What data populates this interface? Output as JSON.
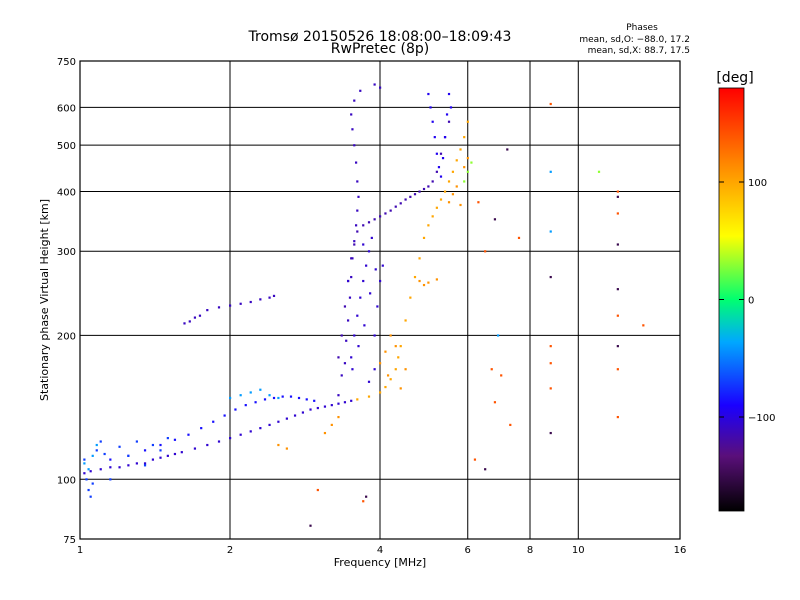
{
  "chart_data": {
    "type": "scatter",
    "title": "Tromsø 20150526 18:08:00–18:09:43",
    "subtitle": "RwPretec (8p)",
    "phases": {
      "heading": "Phases",
      "line1": "mean, sd,O: −88.0, 17.2",
      "line2": "mean, sd,X:  88.7, 17.5"
    },
    "xlabel": "Frequency [MHz]",
    "ylabel": "Stationary phase Virtual Height [km]",
    "x_scale": "log",
    "y_scale": "log",
    "xlim": [
      1,
      16
    ],
    "ylim": [
      75,
      750
    ],
    "grid": true,
    "x_ticks": [
      {
        "value": 1,
        "label": "1"
      },
      {
        "value": 2,
        "label": "2"
      },
      {
        "value": 4,
        "label": "4"
      },
      {
        "value": 6,
        "label": "6"
      },
      {
        "value": 8,
        "label": "8"
      },
      {
        "value": 10,
        "label": "10"
      },
      {
        "value": 16,
        "label": "16"
      }
    ],
    "y_ticks": [
      {
        "value": 75,
        "label": "75"
      },
      {
        "value": 100,
        "label": "100"
      },
      {
        "value": 200,
        "label": "200"
      },
      {
        "value": 300,
        "label": "300"
      },
      {
        "value": 400,
        "label": "400"
      },
      {
        "value": 500,
        "label": "500"
      },
      {
        "value": 600,
        "label": "600"
      },
      {
        "value": 750,
        "label": "750"
      }
    ],
    "colorbar": {
      "label": "[deg]",
      "min": -180,
      "max": 180,
      "ticks": [
        {
          "value": 100,
          "label": "100"
        },
        {
          "value": 0,
          "label": "0"
        },
        {
          "value": -100,
          "label": "−100"
        }
      ]
    },
    "series": [
      {
        "trace": "lower-layer-trace",
        "phase": -105,
        "points": [
          [
            1.02,
            103
          ],
          [
            1.05,
            104
          ],
          [
            1.1,
            105
          ],
          [
            1.15,
            106
          ],
          [
            1.2,
            106
          ],
          [
            1.25,
            107
          ],
          [
            1.3,
            108
          ],
          [
            1.35,
            108
          ],
          [
            1.4,
            110
          ],
          [
            1.45,
            111
          ],
          [
            1.5,
            112
          ],
          [
            1.55,
            113
          ],
          [
            1.6,
            114
          ],
          [
            1.7,
            116
          ],
          [
            1.8,
            118
          ],
          [
            1.9,
            120
          ],
          [
            2.0,
            122
          ],
          [
            2.1,
            124
          ],
          [
            2.2,
            126
          ],
          [
            2.3,
            128
          ],
          [
            2.4,
            130
          ],
          [
            2.5,
            132
          ],
          [
            2.6,
            134
          ],
          [
            2.7,
            136
          ],
          [
            2.8,
            138
          ],
          [
            2.9,
            140
          ],
          [
            3.0,
            141
          ],
          [
            3.1,
            142
          ],
          [
            3.2,
            143
          ],
          [
            3.3,
            144
          ],
          [
            3.4,
            145
          ],
          [
            3.5,
            146
          ]
        ]
      },
      {
        "trace": "upper-band-trace",
        "phase": -85,
        "points": [
          [
            1.15,
            110
          ],
          [
            1.25,
            112
          ],
          [
            1.35,
            115
          ],
          [
            1.45,
            118
          ],
          [
            1.55,
            121
          ],
          [
            1.65,
            124
          ],
          [
            1.75,
            128
          ],
          [
            1.85,
            132
          ],
          [
            1.95,
            136
          ],
          [
            2.05,
            140
          ],
          [
            2.15,
            143
          ],
          [
            2.25,
            145
          ],
          [
            2.35,
            147
          ],
          [
            2.45,
            148
          ],
          [
            2.55,
            149
          ],
          [
            2.65,
            149
          ],
          [
            2.75,
            148
          ],
          [
            2.85,
            147
          ],
          [
            2.95,
            146
          ]
        ]
      },
      {
        "trace": "low-frequency-spread",
        "phase": -70,
        "points": [
          [
            1.02,
            110
          ],
          [
            1.03,
            100
          ],
          [
            1.04,
            95
          ],
          [
            1.05,
            92
          ],
          [
            1.06,
            98
          ],
          [
            1.08,
            115
          ],
          [
            1.1,
            120
          ],
          [
            1.12,
            113
          ],
          [
            1.15,
            100
          ],
          [
            1.2,
            117
          ],
          [
            1.25,
            112
          ],
          [
            1.3,
            120
          ],
          [
            1.35,
            107
          ],
          [
            1.4,
            118
          ],
          [
            1.45,
            115
          ],
          [
            1.5,
            122
          ]
        ]
      },
      {
        "trace": "sporadic-layer",
        "phase": -110,
        "points": [
          [
            1.62,
            212
          ],
          [
            1.66,
            214
          ],
          [
            1.7,
            218
          ],
          [
            1.74,
            220
          ],
          [
            1.8,
            226
          ],
          [
            1.9,
            229
          ],
          [
            2.0,
            231
          ],
          [
            2.1,
            233
          ],
          [
            2.2,
            235
          ],
          [
            2.3,
            238
          ],
          [
            2.4,
            240
          ],
          [
            2.45,
            242
          ]
        ]
      },
      {
        "trace": "ordinary-f-trace",
        "phase": -115,
        "points": [
          [
            3.3,
            180
          ],
          [
            3.35,
            200
          ],
          [
            3.4,
            230
          ],
          [
            3.45,
            260
          ],
          [
            3.5,
            290
          ],
          [
            3.55,
            310
          ],
          [
            3.6,
            330
          ],
          [
            3.7,
            340
          ],
          [
            3.8,
            345
          ],
          [
            3.9,
            350
          ],
          [
            4.0,
            355
          ],
          [
            4.1,
            360
          ],
          [
            4.2,
            365
          ],
          [
            4.3,
            372
          ],
          [
            4.4,
            378
          ],
          [
            4.5,
            385
          ],
          [
            4.6,
            390
          ],
          [
            4.7,
            395
          ],
          [
            4.8,
            400
          ],
          [
            4.9,
            405
          ],
          [
            5.0,
            410
          ],
          [
            5.1,
            420
          ],
          [
            5.2,
            440
          ],
          [
            5.3,
            480
          ],
          [
            5.4,
            520
          ],
          [
            5.5,
            560
          ]
        ]
      },
      {
        "trace": "ordinary-spread",
        "phase": -110,
        "points": [
          [
            3.3,
            150
          ],
          [
            3.35,
            165
          ],
          [
            3.4,
            175
          ],
          [
            3.42,
            195
          ],
          [
            3.45,
            215
          ],
          [
            3.48,
            240
          ],
          [
            3.5,
            265
          ],
          [
            3.52,
            290
          ],
          [
            3.55,
            315
          ],
          [
            3.58,
            340
          ],
          [
            3.6,
            365
          ],
          [
            3.62,
            390
          ],
          [
            3.6,
            420
          ],
          [
            3.58,
            460
          ],
          [
            3.55,
            500
          ],
          [
            3.52,
            540
          ],
          [
            3.5,
            580
          ],
          [
            3.55,
            620
          ],
          [
            3.65,
            650
          ],
          [
            3.9,
            670
          ],
          [
            4.0,
            660
          ]
        ]
      },
      {
        "trace": "spread-f-cloud",
        "phase": -105,
        "points": [
          [
            3.5,
            180
          ],
          [
            3.55,
            200
          ],
          [
            3.6,
            220
          ],
          [
            3.65,
            240
          ],
          [
            3.7,
            260
          ],
          [
            3.75,
            280
          ],
          [
            3.8,
            300
          ],
          [
            3.85,
            320
          ],
          [
            3.9,
            200
          ],
          [
            3.95,
            230
          ],
          [
            4.0,
            260
          ],
          [
            4.05,
            280
          ],
          [
            3.45,
            260
          ],
          [
            3.52,
            170
          ],
          [
            3.62,
            190
          ],
          [
            3.72,
            210
          ],
          [
            3.82,
            245
          ],
          [
            3.92,
            275
          ],
          [
            3.7,
            310
          ],
          [
            3.8,
            160
          ],
          [
            3.9,
            170
          ]
        ]
      },
      {
        "trace": "upper-ordinary-column",
        "phase": -95,
        "points": [
          [
            5.0,
            640
          ],
          [
            5.05,
            600
          ],
          [
            5.1,
            560
          ],
          [
            5.15,
            520
          ],
          [
            5.2,
            480
          ],
          [
            5.25,
            450
          ],
          [
            5.3,
            430
          ],
          [
            5.35,
            470
          ],
          [
            5.4,
            520
          ],
          [
            5.45,
            580
          ],
          [
            5.5,
            640
          ],
          [
            5.55,
            600
          ]
        ]
      },
      {
        "trace": "extraordinary-trace",
        "phase": 100,
        "points": [
          [
            3.6,
            147
          ],
          [
            3.8,
            149
          ],
          [
            4.0,
            152
          ],
          [
            4.1,
            156
          ],
          [
            4.2,
            162
          ],
          [
            4.3,
            170
          ],
          [
            4.35,
            180
          ],
          [
            4.4,
            190
          ],
          [
            4.5,
            215
          ],
          [
            4.6,
            240
          ],
          [
            4.7,
            265
          ],
          [
            4.8,
            290
          ],
          [
            4.9,
            320
          ],
          [
            5.0,
            340
          ],
          [
            5.1,
            355
          ],
          [
            5.2,
            370
          ],
          [
            5.3,
            385
          ],
          [
            5.4,
            400
          ],
          [
            5.5,
            420
          ],
          [
            5.6,
            440
          ],
          [
            5.7,
            465
          ],
          [
            5.8,
            490
          ],
          [
            5.9,
            520
          ],
          [
            6.0,
            560
          ]
        ]
      },
      {
        "trace": "extraordinary-spread",
        "phase": 110,
        "points": [
          [
            3.1,
            125
          ],
          [
            3.2,
            130
          ],
          [
            3.3,
            135
          ],
          [
            2.5,
            118
          ],
          [
            2.6,
            116
          ],
          [
            4.0,
            175
          ],
          [
            4.1,
            185
          ],
          [
            4.15,
            165
          ],
          [
            4.2,
            200
          ],
          [
            4.3,
            190
          ],
          [
            4.4,
            155
          ],
          [
            4.5,
            170
          ],
          [
            4.8,
            260
          ],
          [
            4.9,
            255
          ],
          [
            5.0,
            258
          ],
          [
            5.2,
            262
          ],
          [
            5.5,
            380
          ],
          [
            5.6,
            395
          ],
          [
            5.7,
            410
          ],
          [
            5.8,
            375
          ],
          [
            5.9,
            450
          ],
          [
            6.0,
            470
          ]
        ]
      },
      {
        "trace": "cyan-low-frequency",
        "phase": -40,
        "points": [
          [
            1.02,
            108
          ],
          [
            1.04,
            105
          ],
          [
            1.06,
            112
          ],
          [
            1.08,
            118
          ],
          [
            2.0,
            148
          ],
          [
            2.1,
            150
          ],
          [
            2.2,
            152
          ],
          [
            2.3,
            154
          ],
          [
            2.4,
            150
          ],
          [
            2.5,
            148
          ],
          [
            6.9,
            200
          ],
          [
            8.8,
            440
          ],
          [
            8.8,
            330
          ]
        ]
      },
      {
        "trace": "scattered-points",
        "phase": 140,
        "points": [
          [
            6.3,
            380
          ],
          [
            6.5,
            300
          ],
          [
            6.7,
            170
          ],
          [
            7.0,
            165
          ],
          [
            6.8,
            145
          ],
          [
            7.3,
            130
          ],
          [
            7.6,
            320
          ],
          [
            8.8,
            610
          ],
          [
            8.8,
            190
          ],
          [
            8.8,
            175
          ],
          [
            8.8,
            155
          ],
          [
            12.0,
            400
          ],
          [
            12.0,
            360
          ],
          [
            12.0,
            220
          ],
          [
            12.0,
            170
          ],
          [
            12.0,
            135
          ],
          [
            13.5,
            210
          ],
          [
            3.0,
            95
          ],
          [
            3.7,
            90
          ],
          [
            6.2,
            110
          ]
        ]
      },
      {
        "trace": "deep-phase-points",
        "phase": -150,
        "points": [
          [
            6.8,
            350
          ],
          [
            8.8,
            265
          ],
          [
            8.8,
            125
          ],
          [
            12.0,
            390
          ],
          [
            12.0,
            310
          ],
          [
            12.0,
            250
          ],
          [
            12.0,
            190
          ],
          [
            7.2,
            490
          ],
          [
            6.5,
            105
          ],
          [
            2.9,
            80
          ],
          [
            3.75,
            92
          ]
        ]
      },
      {
        "trace": "green-points",
        "phase": 30,
        "points": [
          [
            11.0,
            440
          ],
          [
            6.1,
            460
          ],
          [
            6.0,
            440
          ],
          [
            5.9,
            420
          ]
        ]
      }
    ]
  }
}
